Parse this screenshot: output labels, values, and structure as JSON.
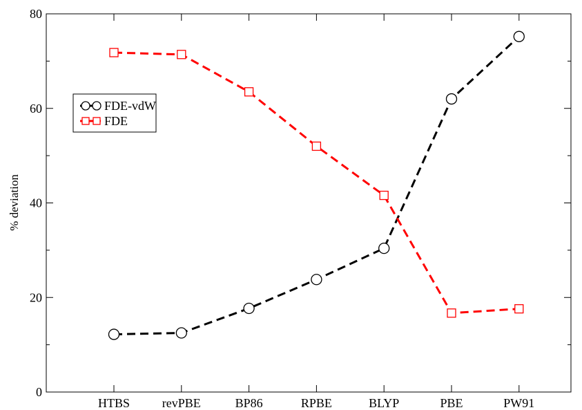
{
  "chart_data": {
    "type": "line",
    "title": "",
    "xlabel": "",
    "ylabel": "% deviation",
    "ylim": [
      0,
      80
    ],
    "yticks": [
      0,
      20,
      40,
      60,
      80
    ],
    "categories": [
      "HTBS",
      "revPBE",
      "BP86",
      "RPBE",
      "BLYP",
      "PBE",
      "PW91"
    ],
    "grid": false,
    "legend_position": "upper-left",
    "series": [
      {
        "name": "FDE-vdW",
        "color": "#000000",
        "marker": "circle",
        "values": [
          12.2,
          12.5,
          17.7,
          23.8,
          30.4,
          62.0,
          75.2
        ]
      },
      {
        "name": "FDE",
        "color": "#ff0000",
        "marker": "square",
        "values": [
          71.8,
          71.4,
          63.5,
          52.0,
          41.6,
          16.7,
          17.6
        ]
      }
    ]
  }
}
